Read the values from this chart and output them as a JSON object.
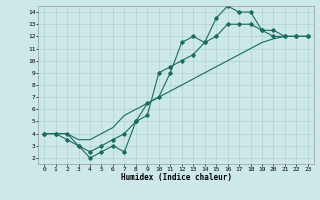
{
  "title": "",
  "xlabel": "Humidex (Indice chaleur)",
  "bg_color": "#cce8e8",
  "line_color": "#1a6b5e",
  "grid_color": "#aacccc",
  "xlim": [
    -0.5,
    23.5
  ],
  "ylim": [
    1.5,
    14.5
  ],
  "xticks": [
    0,
    1,
    2,
    3,
    4,
    5,
    6,
    7,
    8,
    9,
    10,
    11,
    12,
    13,
    14,
    15,
    16,
    17,
    18,
    19,
    20,
    21,
    22,
    23
  ],
  "yticks": [
    2,
    3,
    4,
    5,
    6,
    7,
    8,
    9,
    10,
    11,
    12,
    13,
    14
  ],
  "line1_x": [
    0,
    1,
    2,
    3,
    4,
    5,
    6,
    7,
    8,
    9,
    10,
    11,
    12,
    13,
    14,
    15,
    16,
    17,
    18,
    19,
    20,
    21,
    22,
    23
  ],
  "line1_y": [
    4,
    4,
    4,
    3,
    2,
    2.5,
    3,
    2.5,
    5,
    6.5,
    7,
    9,
    11.5,
    12,
    11.5,
    13.5,
    14.5,
    14,
    14,
    12.5,
    12,
    12,
    12,
    12
  ],
  "line2_x": [
    0,
    1,
    2,
    3,
    4,
    5,
    6,
    7,
    8,
    9,
    10,
    11,
    12,
    13,
    14,
    15,
    16,
    17,
    18,
    19,
    20,
    21,
    22,
    23
  ],
  "line2_y": [
    4,
    4,
    3.5,
    3,
    2.5,
    3,
    3.5,
    4,
    5,
    5.5,
    9,
    9.5,
    10,
    10.5,
    11.5,
    12,
    13,
    13,
    13,
    12.5,
    12.5,
    12,
    12,
    12
  ],
  "line3_x": [
    0,
    1,
    2,
    3,
    4,
    5,
    6,
    7,
    8,
    9,
    10,
    11,
    12,
    13,
    14,
    15,
    16,
    17,
    18,
    19,
    20,
    21,
    22,
    23
  ],
  "line3_y": [
    4,
    4,
    4,
    3.5,
    3.5,
    4,
    4.5,
    5.5,
    6,
    6.5,
    7,
    7.5,
    8,
    8.5,
    9,
    9.5,
    10,
    10.5,
    11,
    11.5,
    11.8,
    12,
    12,
    12
  ]
}
